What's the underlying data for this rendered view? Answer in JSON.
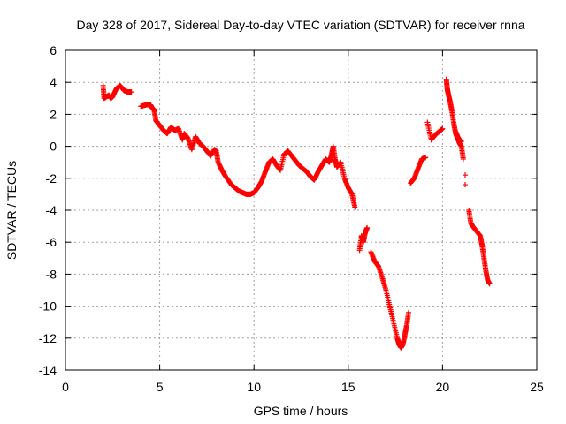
{
  "chart_data": {
    "type": "scatter",
    "title": "Day 328 of 2017, Sidereal Day-to-day VTEC variation (SDTVAR) for receiver rnna",
    "xlabel": "GPS time / hours",
    "ylabel": "SDTVAR / TECUs",
    "xlim": [
      0,
      25
    ],
    "ylim": [
      -14,
      6
    ],
    "xticks": [
      "0",
      "5",
      "10",
      "15",
      "20",
      "25"
    ],
    "yticks": [
      "6",
      "4",
      "2",
      "0",
      "-2",
      "-4",
      "-6",
      "-8",
      "-10",
      "-12",
      "-14"
    ],
    "grid": true,
    "marker": "+",
    "color": "#ff0000",
    "series": [
      {
        "x": [
          2.0,
          2.05,
          2.3,
          2.4,
          2.5,
          2.7,
          2.9,
          3.1,
          3.3,
          3.5,
          4.0,
          4.3,
          4.5,
          4.6,
          4.7,
          4.8,
          5.0,
          5.2,
          5.4,
          5.6,
          5.8,
          6.0,
          6.2,
          6.3,
          6.5,
          6.7,
          6.9,
          7.1,
          7.3,
          7.5,
          7.7,
          7.9,
          8.0,
          8.1,
          8.3,
          8.5,
          8.8,
          9.0,
          9.2,
          9.4,
          9.6,
          9.8,
          10.0,
          10.2,
          10.4,
          10.6,
          10.8,
          11.0,
          11.2,
          11.4,
          11.6,
          11.8,
          12.0,
          12.2,
          12.4,
          12.6,
          12.8,
          13.0,
          13.2,
          13.4,
          13.6,
          13.8,
          14.0,
          14.1,
          14.2,
          14.3,
          14.4,
          14.6,
          14.8,
          15.0,
          15.2,
          15.35,
          15.6,
          15.7,
          15.8,
          15.9,
          16.0,
          16.2,
          16.4,
          16.6,
          16.8,
          17.0,
          17.2,
          17.4,
          17.6,
          17.7,
          17.8,
          17.9,
          18.0,
          18.1,
          18.2,
          18.3,
          18.5,
          18.7,
          18.9,
          19.1,
          19.2,
          19.4,
          19.6,
          19.8,
          20.0,
          20.2,
          20.25,
          20.3,
          20.4,
          20.5,
          20.6,
          20.7,
          20.8,
          20.9,
          21.0,
          21.1,
          21.2,
          20.7,
          20.8,
          20.9,
          21.0,
          21.2,
          21.4,
          21.5,
          21.6,
          21.8,
          22.0,
          22.1,
          22.2,
          22.3,
          22.4,
          22.5
        ],
        "y": [
          3.8,
          3.0,
          3.2,
          3.0,
          3.1,
          3.6,
          3.8,
          3.5,
          3.4,
          3.4,
          2.5,
          2.6,
          2.6,
          2.4,
          2.3,
          1.6,
          1.3,
          1.0,
          0.8,
          1.2,
          1.0,
          1.1,
          0.4,
          0.8,
          0.5,
          -0.2,
          0.6,
          0.2,
          0.0,
          -0.3,
          -0.6,
          -0.2,
          -0.3,
          -1.0,
          -1.5,
          -1.9,
          -2.4,
          -2.6,
          -2.8,
          -2.9,
          -3.0,
          -3.0,
          -2.9,
          -2.6,
          -2.2,
          -1.6,
          -1.0,
          -0.8,
          -1.2,
          -1.5,
          -0.5,
          -0.3,
          -0.6,
          -0.9,
          -1.2,
          -1.4,
          -1.6,
          -1.9,
          -2.1,
          -1.6,
          -1.2,
          -0.8,
          -1.0,
          -0.6,
          0.0,
          -0.8,
          -1.3,
          -1.0,
          -2.0,
          -2.6,
          -3.0,
          -3.8,
          -6.5,
          -5.6,
          -6.0,
          -5.4,
          -5.1,
          -6.6,
          -7.2,
          -7.5,
          -8.2,
          -9.0,
          -10.0,
          -11.0,
          -12.0,
          -12.4,
          -12.6,
          -12.4,
          -11.8,
          -11.2,
          -10.4,
          -2.3,
          -2.0,
          -1.4,
          -0.8,
          -0.7,
          1.5,
          0.4,
          0.7,
          0.9,
          1.1,
          4.2,
          3.6,
          3.3,
          2.8,
          2.2,
          1.4,
          0.8,
          0.5,
          0.2,
          0.0,
          -0.8,
          -2.4,
          0.9,
          0.6,
          0.4,
          0.3,
          -1.8,
          -4.0,
          -4.8,
          -5.0,
          -5.3,
          -5.6,
          -6.2,
          -7.0,
          -7.8,
          -8.4,
          -8.6
        ]
      }
    ]
  }
}
